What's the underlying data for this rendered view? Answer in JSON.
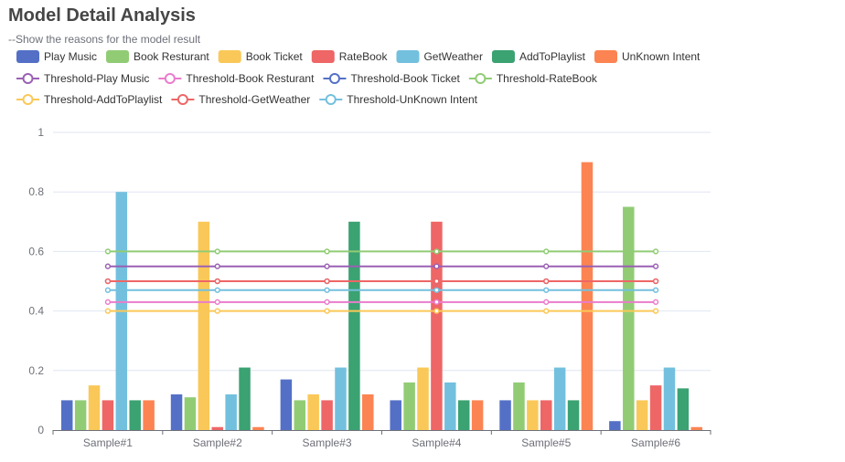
{
  "title": "Model Detail Analysis",
  "subtitle": "--Show the reasons for the model result",
  "colors": {
    "Play Music": "#5470c6",
    "Book Resturant": "#91cc75",
    "Book Ticket": "#fac858",
    "RateBook": "#ee6666",
    "GetWeather": "#73c0de",
    "AddToPlaylist": "#3ba272",
    "UnKnown Intent": "#fc8452",
    "Threshold-Play Music": "#9a60b4",
    "Threshold-Book Resturant": "#ea7ccc",
    "Threshold-Book Ticket": "#5470c6",
    "Threshold-RateBook": "#91cc75",
    "Threshold-AddToPlaylist": "#fac858",
    "Threshold-GetWeather": "#ee6666",
    "Threshold-UnKnown Intent": "#73c0de"
  },
  "chart_data": {
    "type": "bar",
    "categories": [
      "Sample#1",
      "Sample#2",
      "Sample#3",
      "Sample#4",
      "Sample#5",
      "Sample#6"
    ],
    "ylim": [
      0,
      1
    ],
    "yticks": [
      0,
      0.2,
      0.4,
      0.6,
      0.8,
      1
    ],
    "series": [
      {
        "name": "Play Music",
        "type": "bar",
        "values": [
          0.1,
          0.12,
          0.17,
          0.1,
          0.1,
          0.03
        ]
      },
      {
        "name": "Book Resturant",
        "type": "bar",
        "values": [
          0.1,
          0.11,
          0.1,
          0.16,
          0.16,
          0.75
        ]
      },
      {
        "name": "Book Ticket",
        "type": "bar",
        "values": [
          0.15,
          0.7,
          0.12,
          0.21,
          0.1,
          0.1
        ]
      },
      {
        "name": "RateBook",
        "type": "bar",
        "values": [
          0.1,
          0.01,
          0.1,
          0.7,
          0.1,
          0.15
        ]
      },
      {
        "name": "GetWeather",
        "type": "bar",
        "values": [
          0.8,
          0.12,
          0.21,
          0.16,
          0.21,
          0.21
        ]
      },
      {
        "name": "AddToPlaylist",
        "type": "bar",
        "values": [
          0.1,
          0.21,
          0.7,
          0.1,
          0.1,
          0.14
        ]
      },
      {
        "name": "UnKnown Intent",
        "type": "bar",
        "values": [
          0.1,
          0.01,
          0.12,
          0.1,
          0.9,
          0.01
        ]
      },
      {
        "name": "Threshold-Play Music",
        "type": "line",
        "values": [
          0.55,
          0.55,
          0.55,
          0.55,
          0.55,
          0.55
        ]
      },
      {
        "name": "Threshold-Book Resturant",
        "type": "line",
        "values": [
          0.43,
          0.43,
          0.43,
          0.43,
          0.43,
          0.43
        ]
      },
      {
        "name": "Threshold-Book Ticket",
        "type": "line",
        "values": [
          0.5,
          0.5,
          0.5,
          0.5,
          0.5,
          0.5
        ]
      },
      {
        "name": "Threshold-RateBook",
        "type": "line",
        "values": [
          0.6,
          0.6,
          0.6,
          0.6,
          0.6,
          0.6
        ]
      },
      {
        "name": "Threshold-AddToPlaylist",
        "type": "line",
        "values": [
          0.4,
          0.4,
          0.4,
          0.4,
          0.4,
          0.4
        ]
      },
      {
        "name": "Threshold-GetWeather",
        "type": "line",
        "values": [
          0.5,
          0.5,
          0.5,
          0.5,
          0.5,
          0.5
        ]
      },
      {
        "name": "Threshold-UnKnown Intent",
        "type": "line",
        "values": [
          0.47,
          0.47,
          0.47,
          0.47,
          0.47,
          0.47
        ]
      }
    ]
  }
}
